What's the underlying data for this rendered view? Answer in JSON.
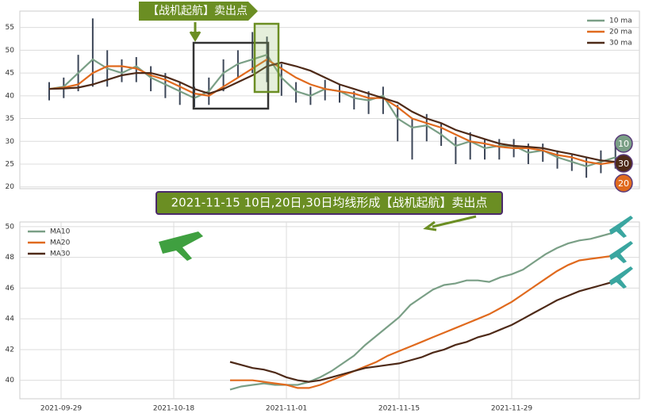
{
  "chart_data": [
    {
      "type": "candlestick",
      "annotation": "【战机起航】卖出点",
      "badges": [
        "10",
        "30",
        "20"
      ],
      "ylim": [
        19.6,
        58.6
      ],
      "yticks": [
        20,
        25,
        30,
        35,
        40,
        45,
        50,
        55
      ],
      "grid": true,
      "legend": "upper right",
      "candle_color": "#3c4658",
      "low": [
        39,
        39.5,
        41,
        42,
        42,
        43,
        43,
        41,
        39.5,
        38,
        37.5,
        38,
        41,
        44,
        45,
        43,
        40,
        38.5,
        38,
        39,
        38.5,
        37,
        36,
        36,
        30,
        26,
        30,
        29,
        25,
        26,
        26,
        26,
        26.5,
        25,
        25.5,
        24,
        23.5,
        22,
        23,
        24
      ],
      "high": [
        43,
        44,
        49,
        57,
        50,
        48,
        48.5,
        46.5,
        45,
        43,
        42,
        44,
        48,
        50,
        54,
        53,
        47,
        43,
        42,
        43.5,
        42.5,
        41,
        41,
        42,
        38,
        35,
        36,
        34,
        31,
        32,
        30.5,
        30.5,
        30.5,
        29.5,
        29.5,
        28,
        27,
        26.5,
        28,
        29.5
      ],
      "series": [
        {
          "name": "10 ma",
          "color": "#7a9f86",
          "values": [
            41.5,
            42,
            45,
            48,
            46,
            45,
            46.5,
            44,
            42.5,
            41,
            39.5,
            41,
            45,
            47,
            48,
            49,
            44,
            41,
            40,
            41.5,
            41,
            39.5,
            39,
            40,
            35,
            33,
            33.5,
            31.5,
            29,
            30,
            28.5,
            29,
            29,
            27.5,
            28,
            26.5,
            25.5,
            24.5,
            25.5,
            26.5
          ]
        },
        {
          "name": "20 ma",
          "color": "#e06a1e",
          "values": [
            41.5,
            41.8,
            42.5,
            45,
            46.5,
            46.5,
            46,
            44.5,
            43.5,
            42,
            40.5,
            40,
            42,
            44,
            46,
            48,
            46,
            44,
            42.5,
            41.5,
            41,
            40.5,
            39.5,
            39.5,
            37.5,
            35,
            34,
            33,
            31.5,
            30,
            29.5,
            28.8,
            28.5,
            28.5,
            28,
            27,
            26.5,
            25.5,
            25,
            25.5
          ]
        },
        {
          "name": "30 ma",
          "color": "#4e2a18",
          "values": [
            41.5,
            41.6,
            41.8,
            42.5,
            43.5,
            44.5,
            45,
            45,
            44.2,
            43,
            41.5,
            40.5,
            41.5,
            43,
            44.5,
            46.5,
            47.3,
            46.5,
            45.5,
            44,
            42.5,
            41.5,
            40.5,
            39.5,
            38.5,
            36.5,
            35,
            34,
            32.5,
            31.5,
            30.5,
            29.5,
            29,
            28.8,
            28.5,
            27.8,
            27.2,
            26.5,
            25.8,
            25.5
          ]
        }
      ]
    },
    {
      "type": "line",
      "annotation": "2021-11-15 10日,20日,30日均线形成【战机起航】卖出点",
      "categories": [
        "2021-09-29",
        null,
        null,
        null,
        null,
        null,
        null,
        null,
        null,
        null,
        "2021-10-18",
        null,
        null,
        null,
        null,
        null,
        null,
        null,
        null,
        null,
        "2021-11-01",
        null,
        null,
        null,
        null,
        null,
        null,
        null,
        null,
        null,
        "2021-11-15",
        null,
        null,
        null,
        null,
        null,
        null,
        null,
        null,
        null,
        "2021-11-29",
        null,
        null,
        null,
        null,
        null,
        null,
        null,
        null,
        null
      ],
      "ylim": [
        38.8,
        50.3
      ],
      "yticks": [
        40,
        42,
        44,
        46,
        48,
        50
      ],
      "grid": true,
      "legend": "upper left",
      "series": [
        {
          "name": "MA10",
          "color": "#7a9f86",
          "values": [
            null,
            null,
            null,
            null,
            null,
            null,
            null,
            null,
            null,
            null,
            null,
            null,
            null,
            null,
            null,
            39.4,
            39.6,
            39.7,
            39.8,
            39.7,
            39.7,
            39.7,
            39.9,
            40.2,
            40.6,
            41.1,
            41.6,
            42.3,
            42.9,
            43.5,
            44.1,
            44.9,
            45.4,
            45.9,
            46.2,
            46.3,
            46.5,
            46.5,
            46.4,
            46.7,
            46.9,
            47.2,
            47.7,
            48.2,
            48.6,
            48.9,
            49.1,
            49.2,
            49.4,
            49.6
          ]
        },
        {
          "name": "MA20",
          "color": "#e06a1e",
          "values": [
            null,
            null,
            null,
            null,
            null,
            null,
            null,
            null,
            null,
            null,
            null,
            null,
            null,
            null,
            null,
            40.0,
            40.0,
            40.0,
            39.9,
            39.8,
            39.7,
            39.5,
            39.5,
            39.7,
            40.0,
            40.3,
            40.6,
            40.9,
            41.2,
            41.6,
            41.9,
            42.2,
            42.5,
            42.8,
            43.1,
            43.4,
            43.7,
            44.0,
            44.3,
            44.7,
            45.1,
            45.6,
            46.1,
            46.6,
            47.1,
            47.5,
            47.8,
            47.9,
            48.0,
            48.1
          ]
        },
        {
          "name": "MA30",
          "color": "#4e2a18",
          "values": [
            null,
            null,
            null,
            null,
            null,
            null,
            null,
            null,
            null,
            null,
            null,
            null,
            null,
            null,
            null,
            41.2,
            41.0,
            40.8,
            40.7,
            40.5,
            40.2,
            40.0,
            39.9,
            40.0,
            40.2,
            40.4,
            40.6,
            40.8,
            40.9,
            41.0,
            41.1,
            41.3,
            41.5,
            41.8,
            42.0,
            42.3,
            42.5,
            42.8,
            43.0,
            43.3,
            43.6,
            44.0,
            44.4,
            44.8,
            45.2,
            45.5,
            45.8,
            46.0,
            46.2,
            46.4
          ]
        }
      ]
    }
  ]
}
